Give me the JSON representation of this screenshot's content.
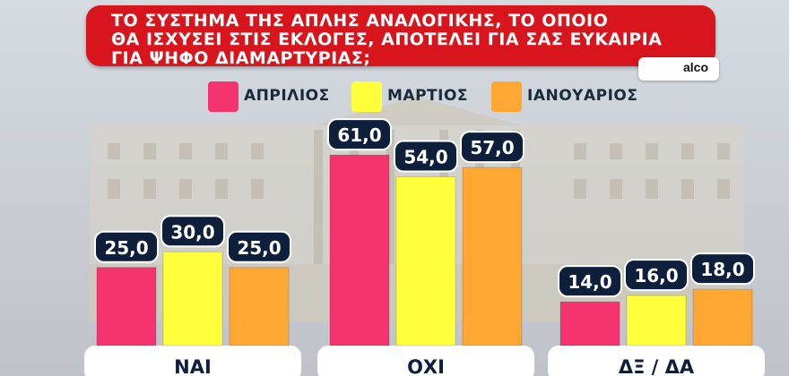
{
  "header": {
    "title_lines": [
      "ΤΟ ΣΥΣΤΗΜΑ ΤΗΣ ΑΠΛΗΣ ΑΝΑΛΟΓΙΚΗΣ, ΤΟ ΟΠΟΙΟ",
      "ΘΑ ΙΣΧΥΣΕΙ ΣΤΙΣ ΕΚΛΟΓΕΣ, ΑΠΟΤΕΛΕΙ ΓΙΑ ΣΑΣ ΕΥΚΑΙΡΙΑ",
      "ΓΙΑ ΨΗΦΟ ΔΙΑΜΑΡΤΥΡΙΑΣ;"
    ],
    "source": "alco"
  },
  "colors": {
    "title_bg": "#d8141c",
    "april": "#f5336e",
    "march": "#ffff3c",
    "january": "#ffa733",
    "label_bg": "#0d1f3a"
  },
  "chart_data": {
    "type": "bar",
    "categories": [
      "ΝΑΙ",
      "ΟΧΙ",
      "ΔΞ / ΔΑ"
    ],
    "series": [
      {
        "name": "ΑΠΡΙΛΙΟΣ",
        "values": [
          25.0,
          61.0,
          14.0
        ],
        "labels": [
          "25,0",
          "61,0",
          "14,0"
        ]
      },
      {
        "name": "ΜΑΡΤΙΟΣ",
        "values": [
          30.0,
          54.0,
          16.0
        ],
        "labels": [
          "30,0",
          "54,0",
          "16,0"
        ]
      },
      {
        "name": "ΙΑΝΟΥΑΡΙΟΣ",
        "values": [
          25.0,
          57.0,
          18.0
        ],
        "labels": [
          "25,0",
          "57,0",
          "18,0"
        ]
      }
    ],
    "legend_position": "top",
    "ylim": [
      0,
      70
    ]
  }
}
